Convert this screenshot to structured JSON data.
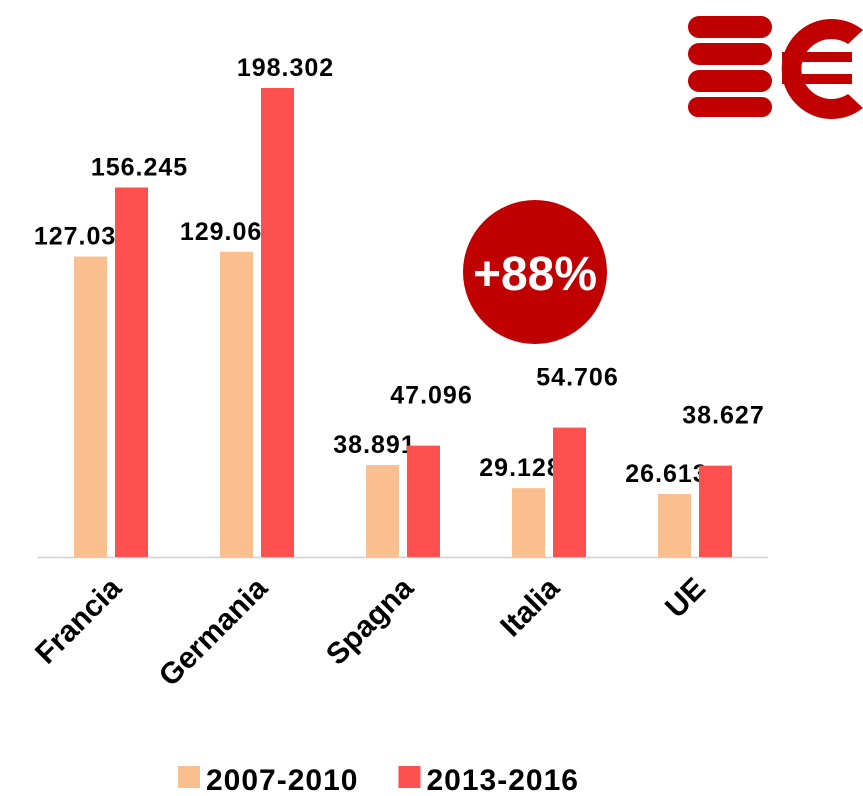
{
  "chart_data": {
    "type": "bar",
    "categories": [
      "Francia",
      "Germania",
      "Spagna",
      "Italia",
      "UE"
    ],
    "series": [
      {
        "name": "2007-2010",
        "color": "#f9bf8f",
        "values": [
          127038,
          129061,
          38891,
          29128,
          26613
        ],
        "value_labels": [
          "127.038",
          "129.061",
          "38.891",
          "29.128",
          "26.613"
        ]
      },
      {
        "name": "2013-2016",
        "color": "#ff5050",
        "values": [
          156245,
          198302,
          47096,
          54706,
          38627
        ],
        "value_labels": [
          "156.245",
          "198.302",
          "47.096",
          "54.706",
          "38.627"
        ]
      }
    ],
    "annotation": "+88%",
    "legend": "bottom"
  }
}
